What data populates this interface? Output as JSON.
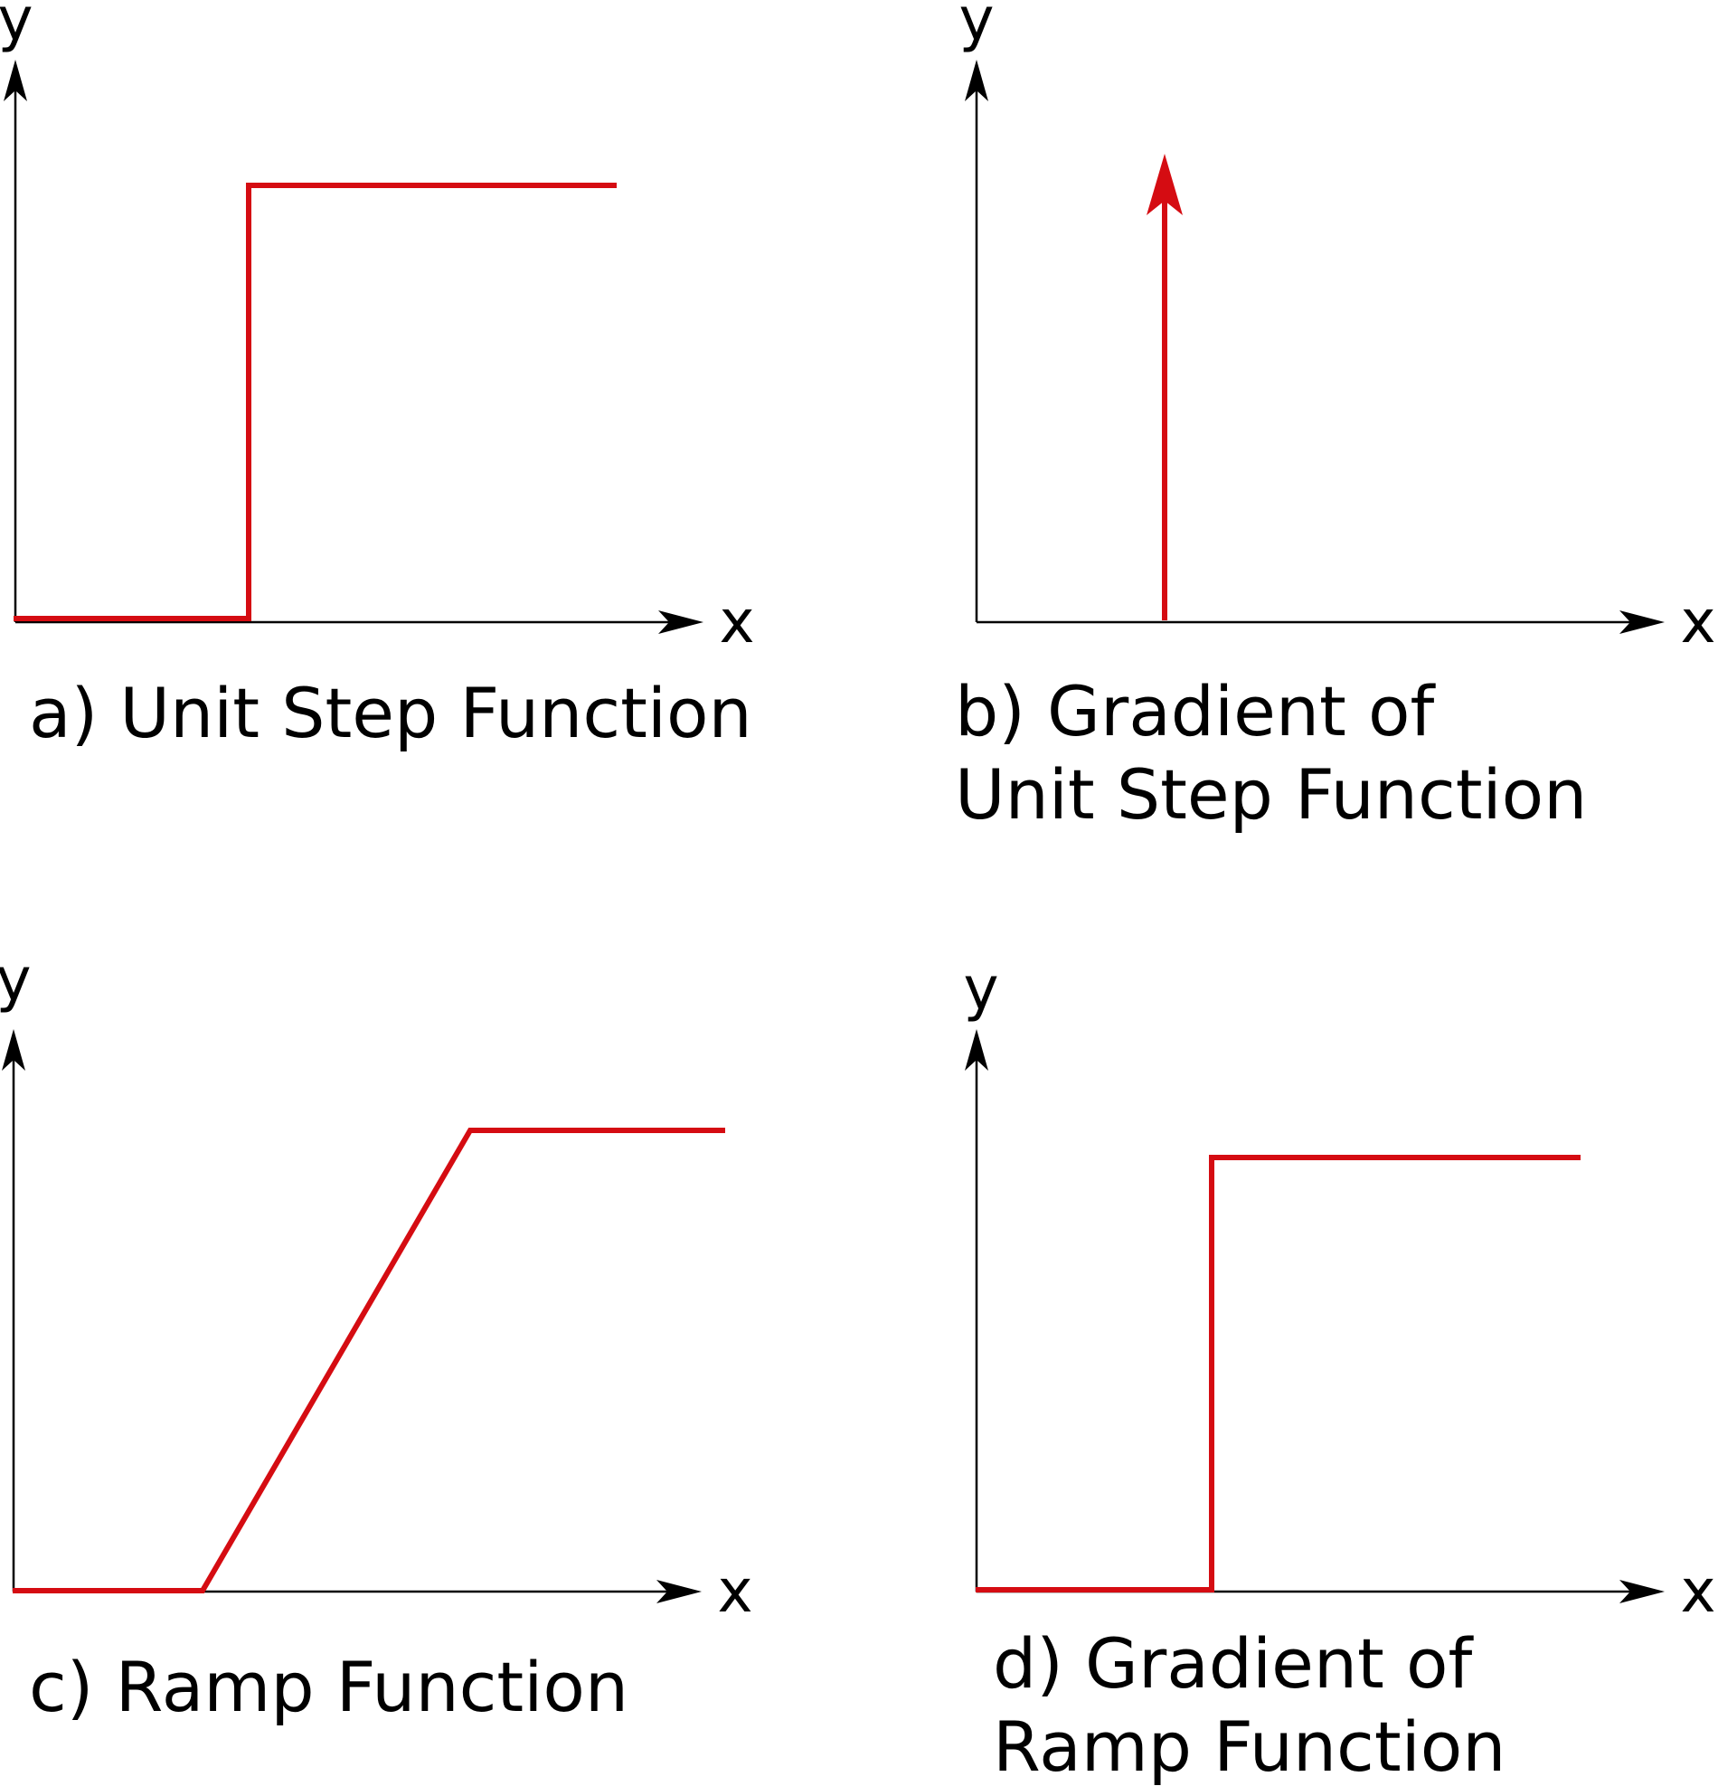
{
  "colors": {
    "curve": "#d50c12",
    "axis": "#000000",
    "background": "#ffffff"
  },
  "panels": [
    {
      "id": "a",
      "kind": "step",
      "x_label": "x",
      "y_label": "y",
      "caption_lines": [
        "a) Unit Step Function"
      ]
    },
    {
      "id": "b",
      "kind": "impulse",
      "x_label": "x",
      "y_label": "y",
      "caption_lines": [
        "b) Gradient of",
        "Unit Step Function"
      ]
    },
    {
      "id": "c",
      "kind": "ramp",
      "x_label": "x",
      "y_label": "y",
      "caption_lines": [
        "c) Ramp Function"
      ]
    },
    {
      "id": "d",
      "kind": "step",
      "x_label": "x",
      "y_label": "y",
      "caption_lines": [
        "d) Gradient of",
        "Ramp Function"
      ]
    }
  ]
}
